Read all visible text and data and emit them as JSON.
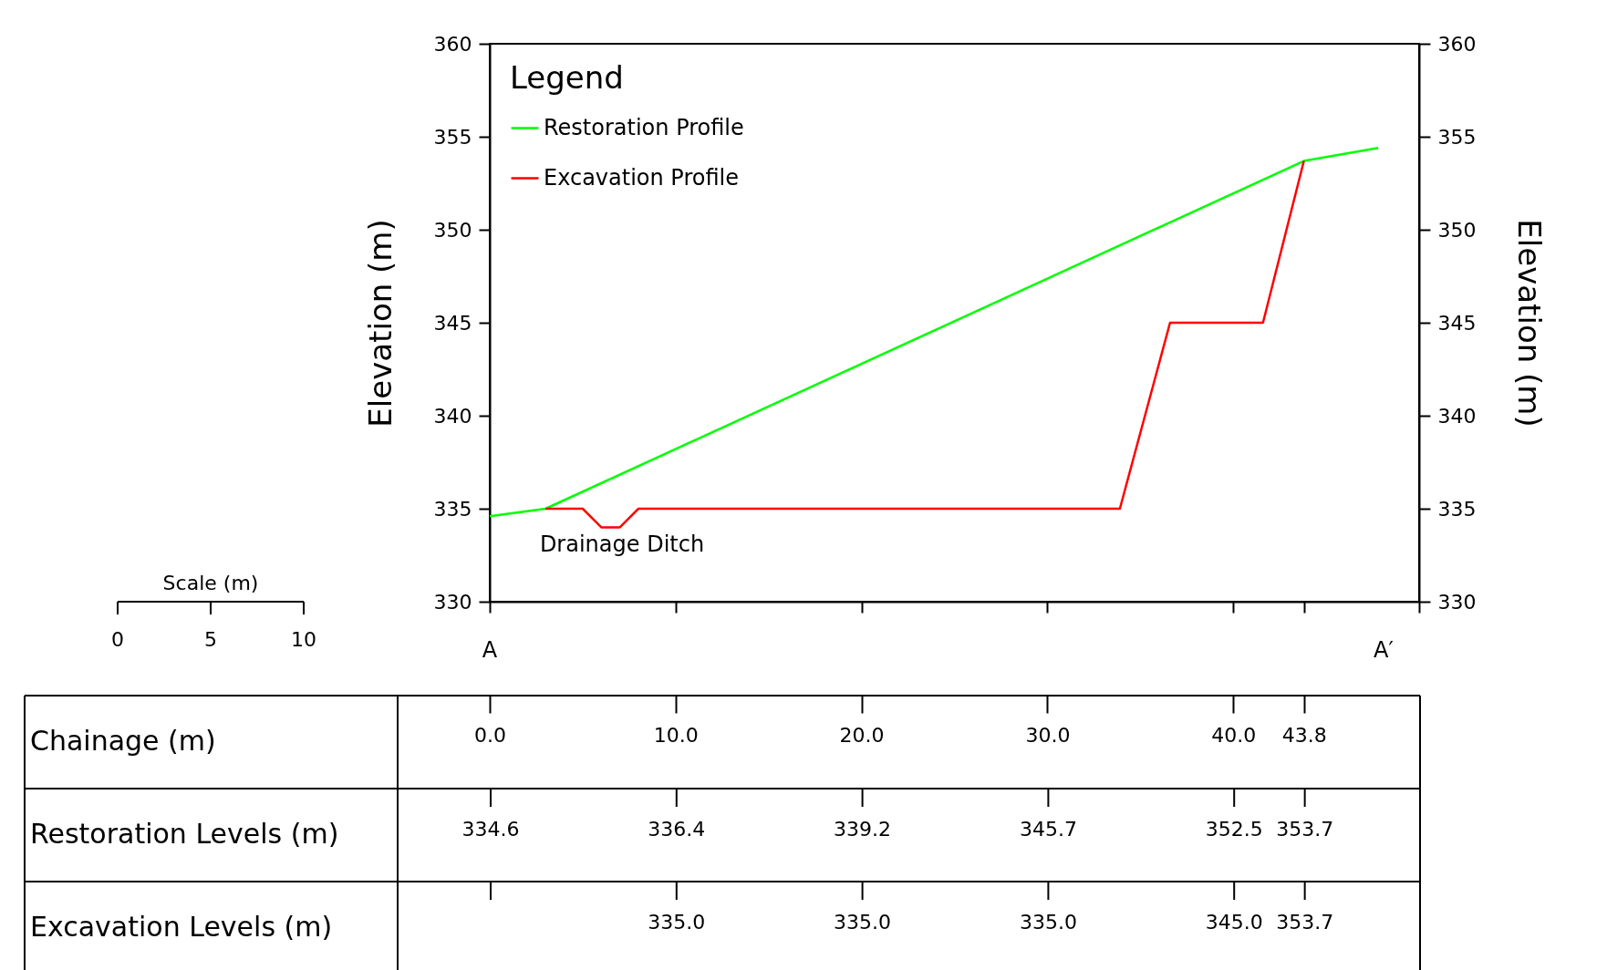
{
  "chart_data": [
    {
      "type": "line",
      "xlim": [
        0,
        50
      ],
      "xticks": [
        {
          "value": 0,
          "label": "0.0"
        },
        {
          "value": 10,
          "label": "10.0"
        },
        {
          "value": 20,
          "label": "20.0"
        },
        {
          "value": 30,
          "label": "30.0"
        },
        {
          "value": 40,
          "label": "40.0"
        },
        {
          "value": 43.8,
          "label": "43.8"
        },
        {
          "value": 50,
          "label": null
        }
      ],
      "ylim": [
        330,
        360
      ],
      "yticks": [
        330,
        335,
        340,
        345,
        350,
        355,
        360
      ],
      "y2lim": [
        330,
        360
      ],
      "y2ticks": [
        330,
        335,
        340,
        345,
        350,
        355,
        360
      ],
      "ylabel": "Elevation (m)",
      "y2label": "Elevation (m)",
      "legend_title": "Legend",
      "legend": "top left",
      "grid": false,
      "series": [
        {
          "name": "Restoration Profile",
          "color": "#00ff00",
          "x": [
            0,
            3,
            43.8,
            47.8
          ],
          "values": [
            334.6,
            335.0,
            353.7,
            354.4
          ]
        },
        {
          "name": "Excavation Profile",
          "color": "#ff0000",
          "x": [
            3,
            5,
            6,
            7,
            8,
            33.9,
            36.6,
            41.6,
            43.8
          ],
          "values": [
            335,
            335,
            334,
            334,
            335,
            335,
            345,
            345,
            353.7
          ]
        }
      ],
      "annotations": [
        "Drainage Ditch",
        "A",
        "A′",
        "Scale (m)",
        "0",
        "5",
        "10"
      ]
    },
    {
      "type": "other",
      "y_categories": [
        "Chainage (m)",
        "Restoration Levels (m)",
        "Excavation Levels (m)"
      ],
      "cell_labels": [
        [
          null,
          null,
          null,
          null,
          null,
          null
        ],
        [
          "334.6",
          "336.4",
          "339.2",
          "345.7",
          "352.5",
          "353.7"
        ],
        [
          null,
          "335.0",
          "335.0",
          "335.0",
          "345.0",
          "353.7"
        ]
      ]
    }
  ]
}
